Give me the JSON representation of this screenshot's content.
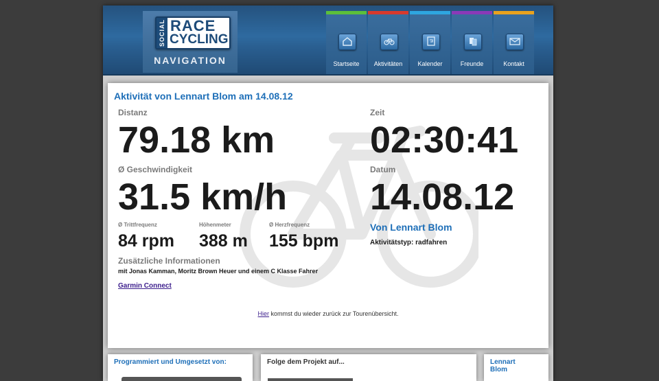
{
  "logo": {
    "social": "SOCIAL",
    "race": "RACE",
    "cycling": "CYCLING",
    "navigation": "NAVIGATION"
  },
  "nav": [
    {
      "label": "Startseite",
      "color": "#5cbf3a",
      "icon": "home-icon"
    },
    {
      "label": "Aktivitäten",
      "color": "#d83a2e",
      "icon": "bicycle-icon"
    },
    {
      "label": "Kalender",
      "color": "#2ea6e0",
      "icon": "calendar-icon"
    },
    {
      "label": "Freunde",
      "color": "#8a3ab8",
      "icon": "friends-icon"
    },
    {
      "label": "Kontakt",
      "color": "#e9a21e",
      "icon": "mail-icon"
    }
  ],
  "activity": {
    "title": "Aktivität von Lennart Blom am 14.08.12",
    "distance_label": "Distanz",
    "distance": "79.18 km",
    "speed_label": "Ø Geschwindigkeit",
    "speed": "31.5 km/h",
    "cadence_label": "Ø Trittfrequenz",
    "cadence": "84 rpm",
    "elevation_label": "Höhenmeter",
    "elevation": "388 m",
    "heartrate_label": "Ø Herzfrequenz",
    "heartrate": "155 bpm",
    "extra_label": "Zusätzliche Informationen",
    "extra_text": "mit Jonas Kamman, Moritz Brown Heuer und einem C Klasse Fahrer",
    "garmin_link": "Garmin Connect",
    "time_label": "Zeit",
    "time": "02:30:41",
    "date_label": "Datum",
    "date": "14.08.12",
    "by_user": "Von Lennart Blom",
    "type_text": "Aktivitätstyp: radfahren",
    "back_link": "Hier",
    "back_text": " kommst du wieder zurück zur Tourenübersicht."
  },
  "footer": {
    "programmed": "Programmiert und Umgesetzt von:",
    "follow": "Folge dem Projekt auf...",
    "user_line1": "Lennart",
    "user_line2": "Blom"
  },
  "colors": {
    "header": "#2e6aa0",
    "accent": "#1e6fb8",
    "background": "#3c3c3c"
  }
}
